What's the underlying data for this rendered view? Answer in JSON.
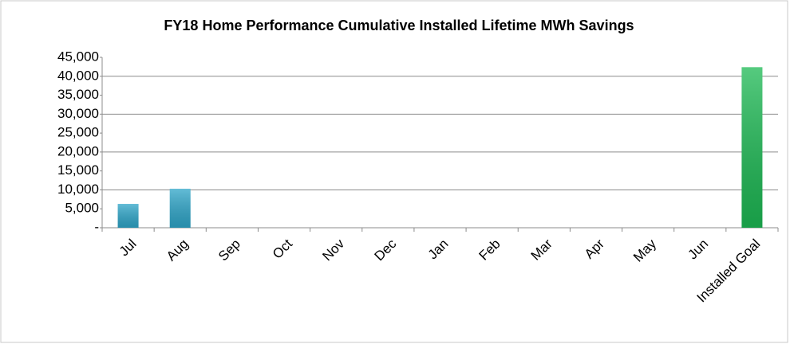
{
  "chart_data": {
    "type": "bar",
    "title": "FY18 Home Performance Cumulative Installed Lifetime MWh Savings",
    "categories": [
      "Jul",
      "Aug",
      "Sep",
      "Oct",
      "Nov",
      "Dec",
      "Jan",
      "Feb",
      "Mar",
      "Apr",
      "May",
      "Jun",
      "Installed Goal"
    ],
    "values": [
      6300,
      10300,
      null,
      null,
      null,
      null,
      null,
      null,
      null,
      null,
      null,
      null,
      42400
    ],
    "colors": [
      "#2fa6c9",
      "#2fa6c9",
      "#2fa6c9",
      "#2fa6c9",
      "#2fa6c9",
      "#2fa6c9",
      "#2fa6c9",
      "#2fa6c9",
      "#2fa6c9",
      "#2fa6c9",
      "#2fa6c9",
      "#2fa6c9",
      "#1db954"
    ],
    "ylim": [
      0,
      45000
    ],
    "yticks": [
      {
        "value": 0,
        "label": "-"
      },
      {
        "value": 5000,
        "label": "5,000"
      },
      {
        "value": 10000,
        "label": "10,000"
      },
      {
        "value": 15000,
        "label": "15,000"
      },
      {
        "value": 20000,
        "label": "20,000"
      },
      {
        "value": 25000,
        "label": "25,000"
      },
      {
        "value": 30000,
        "label": "30,000"
      },
      {
        "value": 35000,
        "label": "35,000"
      },
      {
        "value": 40000,
        "label": "40,000"
      },
      {
        "value": 45000,
        "label": "45,000"
      }
    ],
    "gridlines": [
      10000,
      20000,
      30000,
      40000
    ]
  }
}
